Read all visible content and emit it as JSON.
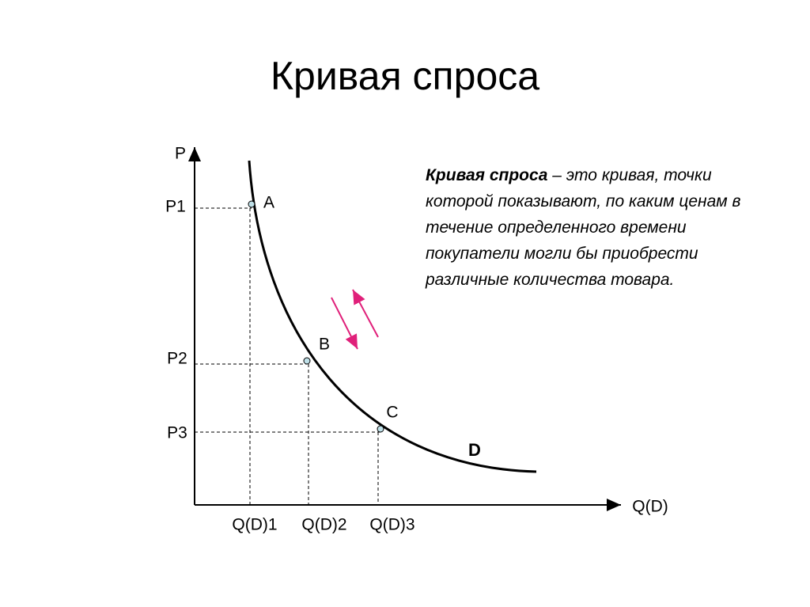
{
  "title": "Кривая спроса",
  "graph": {
    "y_axis_label": "P",
    "x_axis_label": "Q(D)",
    "price_labels": [
      "P1",
      "P2",
      "P3"
    ],
    "quantity_labels": [
      "Q(D)1",
      "Q(D)2",
      "Q(D)3"
    ],
    "points": [
      "A",
      "B",
      "C"
    ],
    "curve_label": "D"
  },
  "definition": {
    "term": "Кривая спроса",
    "text": " – это кривая, точки которой показывают, по каким ценам в течение определенного времени покупатели могли бы приобрести различные количества товара."
  }
}
